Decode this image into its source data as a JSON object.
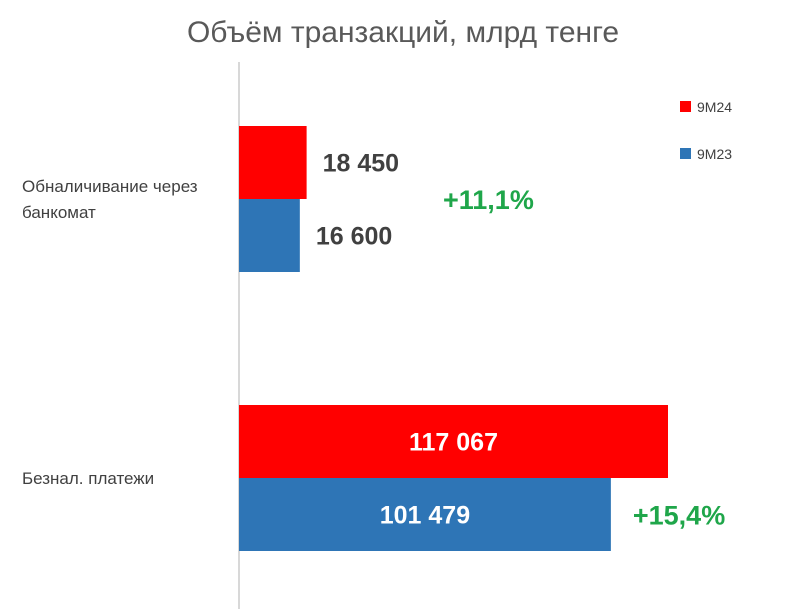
{
  "colors": {
    "series_9m24": "#ff0000",
    "series_9m23": "#2e75b6",
    "change": "#1fa64a",
    "value_dark": "#404040",
    "value_light": "#ffffff",
    "axis": "#bfbfbf",
    "title": "#595959"
  },
  "chart_data": {
    "type": "bar",
    "orientation": "horizontal",
    "title": "Объём транзакций, млрд тенге",
    "categories": [
      "Обналичивание через банкомат",
      "Безнал. платежи"
    ],
    "category_lines": [
      [
        "Обналичивание через",
        "банкомат"
      ],
      [
        "Безнал. платежи"
      ]
    ],
    "series": [
      {
        "name": "9M24",
        "values": [
          18450,
          117067
        ],
        "labels": [
          "18 450",
          "117 067"
        ]
      },
      {
        "name": "9M23",
        "values": [
          16600,
          101479
        ],
        "labels": [
          "16 600",
          "101 479"
        ]
      }
    ],
    "changes": [
      "+11,1%",
      "+15,4%"
    ],
    "legend_position": "top-right",
    "xlim": [
      0,
      125000
    ],
    "grid": false
  }
}
